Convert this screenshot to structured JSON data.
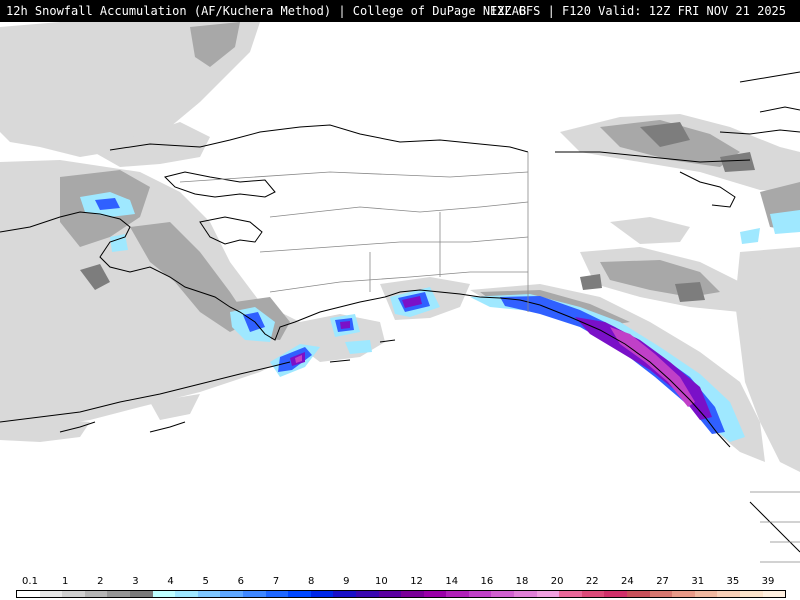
{
  "header": {
    "title": "12h Snowfall Accumulation (AF/Kuchera Method) | College of DuPage NEXLAB",
    "run_info": "12Z GFS | F120 Valid: 12Z FRI NOV 21 2025"
  },
  "legend": {
    "tick_labels": [
      "0.1",
      "1",
      "2",
      "3",
      "4",
      "5",
      "6",
      "7",
      "8",
      "9",
      "10",
      "12",
      "14",
      "16",
      "18",
      "20",
      "22",
      "24",
      "27",
      "31",
      "35",
      "39"
    ],
    "colors": [
      "#ffffff",
      "#e6e6e6",
      "#cfcfcf",
      "#b4b4b4",
      "#969696",
      "#7a7a7a",
      "#bfffff",
      "#9fe8ff",
      "#7fc8ff",
      "#5fa8ff",
      "#3f88ff",
      "#1f68ff",
      "#0048ff",
      "#0028e8",
      "#1a10c8",
      "#3a08b0",
      "#5a00a0",
      "#7a0098",
      "#9a00a8",
      "#b020b8",
      "#c040c8",
      "#d060d0",
      "#e080d8",
      "#f0a0e0",
      "#e8689a",
      "#dc4a7a",
      "#d0306a",
      "#c8505a",
      "#d87870",
      "#e89a88",
      "#f0b8a0",
      "#f8d0b8",
      "#fce4cc",
      "#fff0e0"
    ]
  },
  "map": {
    "background": "#ffffff",
    "light_snow": "#d9d9d9",
    "moderate_snow": "#a8a8a8",
    "heavy_snow": "#7d7d7d",
    "cyan": "#9fe8ff",
    "blue": "#3060ff",
    "purple": "#7a10c8",
    "magenta": "#c040c8"
  }
}
